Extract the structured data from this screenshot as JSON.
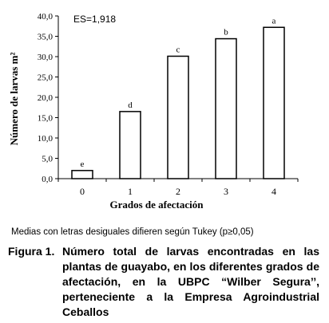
{
  "chart_data": {
    "type": "bar",
    "categories": [
      "0",
      "1",
      "2",
      "3",
      "4"
    ],
    "values": [
      2.0,
      16.5,
      30.1,
      34.4,
      37.2
    ],
    "bar_labels": [
      "e",
      "d",
      "c",
      "b",
      "a"
    ],
    "ylabel": "Número de larvas m²",
    "xlabel": "Grados de afectación",
    "ylim": [
      0,
      40
    ],
    "yticks": [
      "0,0",
      "5,0",
      "10,0",
      "15,0",
      "20,0",
      "25,0",
      "30,0",
      "35,0",
      "40,0"
    ],
    "annotation": "ES=1,918",
    "grid": false,
    "bar_color": "#ffffff",
    "stroke_color": "#000000"
  },
  "note": "Medias con letras desiguales difieren según Tukey (p≥0,05)",
  "caption": {
    "label": "Figura 1.",
    "text": "Número total de larvas encontradas en las plantas de guayabo, en los diferentes grados de afectación, en la UBPC “Wilber Segura’’, perteneciente a la Empresa Agroindustrial Ceballos"
  }
}
